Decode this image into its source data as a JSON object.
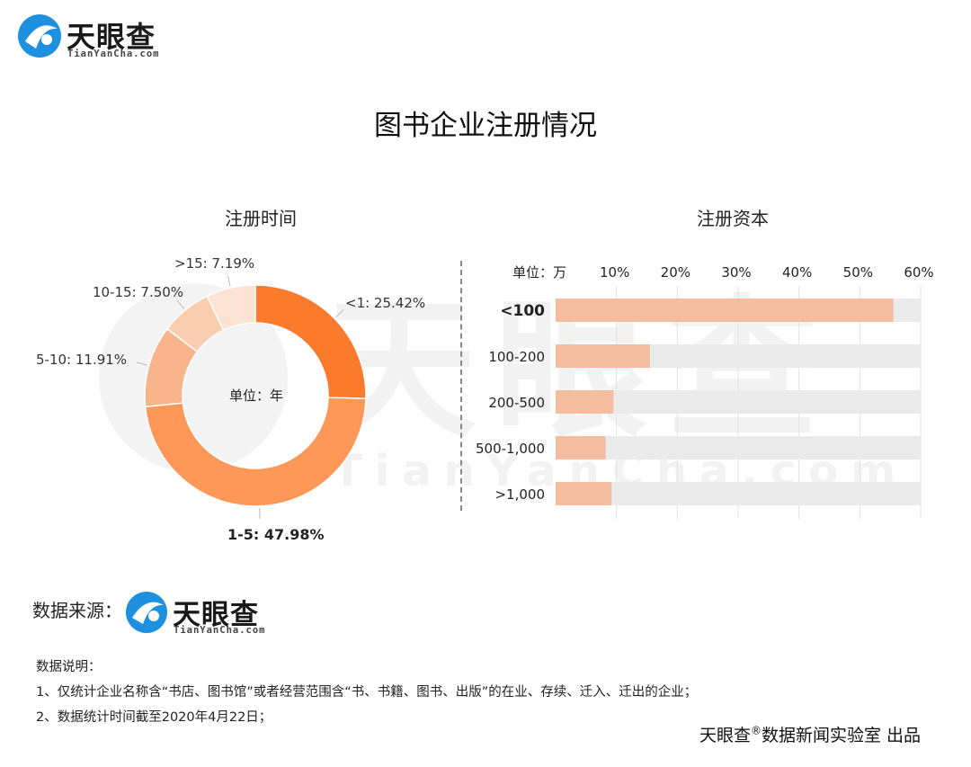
{
  "brand": {
    "name": "天眼查",
    "domain": "TianYanCha.com",
    "watermark_main": "天眼查",
    "watermark_sub": "TianYanCha.com"
  },
  "title": "图书企业注册情况",
  "chart_data": [
    {
      "type": "pie",
      "title": "注册时间",
      "center_label": "单位：年",
      "slices": [
        {
          "label": "<1",
          "value": 25.42,
          "text": "<1: 25.42%",
          "color": "#fc7a2c"
        },
        {
          "label": "1-5",
          "value": 47.98,
          "text": "1-5: 47.98%",
          "color": "#fd9858"
        },
        {
          "label": "5-10",
          "value": 11.91,
          "text": "5-10: 11.91%",
          "color": "#f8b48b"
        },
        {
          "label": "10-15",
          "value": 7.5,
          "text": "10-15: 7.50%",
          "color": "#f9cdb0"
        },
        {
          "label": ">15",
          "value": 7.19,
          "text": ">15: 7.19%",
          "color": "#fbe2d2"
        }
      ]
    },
    {
      "type": "bar",
      "orientation": "horizontal",
      "title": "注册资本",
      "unit_label": "单位：万",
      "categories": [
        "<100",
        "100-200",
        "200-500",
        "500-1,000",
        ">1,000"
      ],
      "values": [
        55.5,
        15.5,
        9.5,
        8.2,
        9.2
      ],
      "xlim": [
        0,
        60
      ],
      "ticks": [
        "10%",
        "20%",
        "30%",
        "40%",
        "50%",
        "60%"
      ],
      "tick_values": [
        10,
        20,
        30,
        40,
        50,
        60
      ],
      "bar_color": "#f4bda0",
      "track_color": "#eaeaea"
    }
  ],
  "footer": {
    "source_label": "数据来源：",
    "note_head": "数据说明：",
    "note_1": "1、仅统计企业名称含“书店、图书馆”或者经营范围含“书、书籍、图书、出版”的在业、存续、迁入、迁出的企业；",
    "note_2": "2、数据统计时间截至2020年4月22日；",
    "credit_brand": "天眼查",
    "credit_mark": "®",
    "credit_rest": "数据新闻实验室 出品"
  }
}
